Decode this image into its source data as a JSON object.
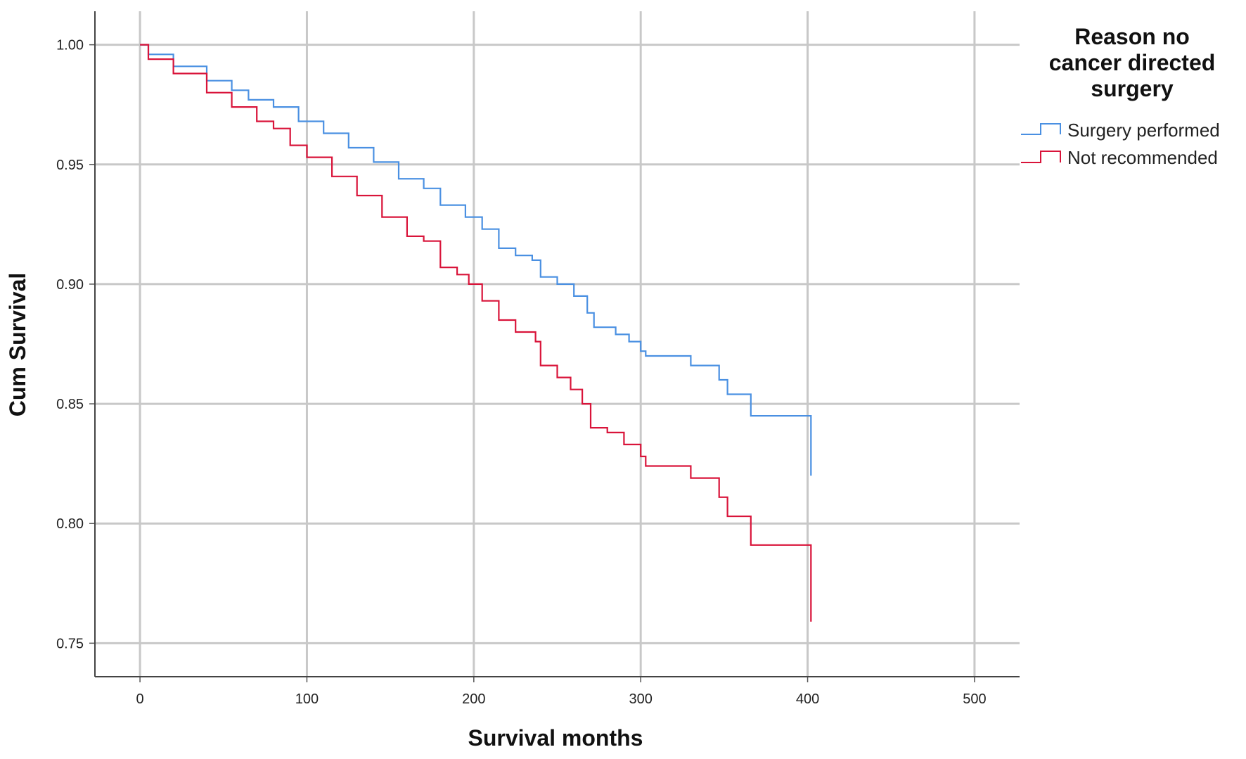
{
  "chart_data": {
    "type": "line",
    "xlabel": "Survival months",
    "ylabel": "Cum Survival",
    "xlim": [
      -27,
      527
    ],
    "ylim": [
      0.736,
      1.014
    ],
    "x_ticks": [
      0,
      100,
      200,
      300,
      400,
      500
    ],
    "x_tick_labels": [
      "0",
      "100",
      "200",
      "300",
      "400",
      "500"
    ],
    "y_ticks": [
      0.75,
      0.8,
      0.85,
      0.9,
      0.95,
      1.0
    ],
    "y_tick_labels": [
      "0.75",
      "0.80",
      "0.85",
      "0.90",
      "0.95",
      "1.00"
    ],
    "grid": true,
    "legend": {
      "title_lines": [
        "Reason no",
        "cancer directed",
        "surgery"
      ],
      "placement": "right"
    },
    "series": [
      {
        "name": "Surgery performed",
        "color": "#4a90e2",
        "step": true,
        "points": [
          [
            0,
            1.0
          ],
          [
            5,
            0.996
          ],
          [
            20,
            0.991
          ],
          [
            40,
            0.985
          ],
          [
            55,
            0.981
          ],
          [
            65,
            0.977
          ],
          [
            80,
            0.974
          ],
          [
            95,
            0.968
          ],
          [
            110,
            0.963
          ],
          [
            125,
            0.957
          ],
          [
            140,
            0.951
          ],
          [
            155,
            0.944
          ],
          [
            170,
            0.94
          ],
          [
            180,
            0.933
          ],
          [
            195,
            0.928
          ],
          [
            205,
            0.923
          ],
          [
            215,
            0.915
          ],
          [
            225,
            0.912
          ],
          [
            235,
            0.91
          ],
          [
            240,
            0.903
          ],
          [
            250,
            0.9
          ],
          [
            260,
            0.895
          ],
          [
            268,
            0.888
          ],
          [
            272,
            0.882
          ],
          [
            285,
            0.879
          ],
          [
            293,
            0.876
          ],
          [
            300,
            0.872
          ],
          [
            303,
            0.87
          ],
          [
            330,
            0.866
          ],
          [
            347,
            0.86
          ],
          [
            352,
            0.854
          ],
          [
            366,
            0.845
          ],
          [
            402,
            0.845
          ],
          [
            402,
            0.82
          ]
        ]
      },
      {
        "name": "Not recommended",
        "color": "#d9143a",
        "step": true,
        "points": [
          [
            0,
            1.0
          ],
          [
            5,
            0.994
          ],
          [
            20,
            0.988
          ],
          [
            40,
            0.98
          ],
          [
            55,
            0.974
          ],
          [
            70,
            0.968
          ],
          [
            80,
            0.965
          ],
          [
            90,
            0.958
          ],
          [
            100,
            0.953
          ],
          [
            115,
            0.945
          ],
          [
            130,
            0.937
          ],
          [
            145,
            0.928
          ],
          [
            160,
            0.92
          ],
          [
            170,
            0.918
          ],
          [
            180,
            0.907
          ],
          [
            190,
            0.904
          ],
          [
            197,
            0.9
          ],
          [
            205,
            0.893
          ],
          [
            215,
            0.885
          ],
          [
            225,
            0.88
          ],
          [
            237,
            0.876
          ],
          [
            240,
            0.866
          ],
          [
            250,
            0.861
          ],
          [
            258,
            0.856
          ],
          [
            265,
            0.85
          ],
          [
            270,
            0.84
          ],
          [
            280,
            0.838
          ],
          [
            290,
            0.833
          ],
          [
            300,
            0.828
          ],
          [
            303,
            0.824
          ],
          [
            330,
            0.819
          ],
          [
            347,
            0.811
          ],
          [
            352,
            0.803
          ],
          [
            366,
            0.791
          ],
          [
            402,
            0.791
          ],
          [
            402,
            0.759
          ]
        ]
      }
    ]
  }
}
